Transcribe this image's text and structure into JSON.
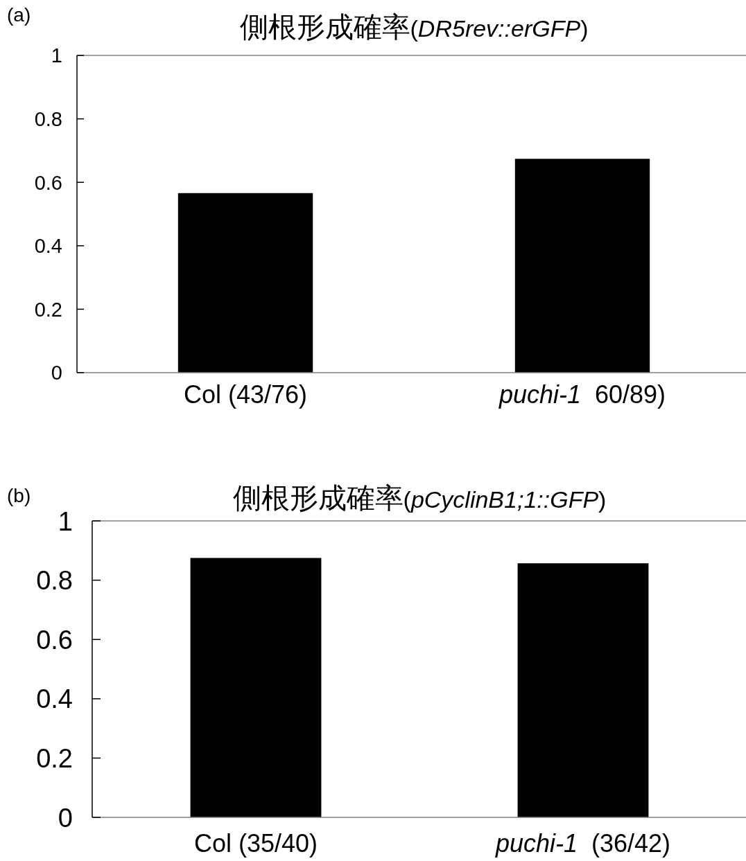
{
  "chart_data": [
    {
      "type": "bar",
      "title": "側根形成確率(*DR5rev::erGFP*)",
      "annotations": [
        "(a)"
      ],
      "categories": [
        "Col (43/76)",
        "*puchi-1*  60/89)"
      ],
      "values": [
        0.566,
        0.674
      ],
      "color": "#000000",
      "ylim": [
        0,
        1
      ],
      "yticks": [
        0,
        0.2,
        0.4,
        0.6,
        0.8,
        1
      ]
    },
    {
      "type": "bar",
      "title": "側根形成確率(*pCyclinB1;1::GFP*)",
      "annotations": [
        "(b)"
      ],
      "categories": [
        "Col (35/40)",
        "*puchi-1*  (36/42)"
      ],
      "values": [
        0.875,
        0.857
      ],
      "color": "#000000",
      "ylim": [
        0,
        1
      ],
      "yticks": [
        0,
        0.2,
        0.4,
        0.6,
        0.8,
        1
      ]
    }
  ]
}
